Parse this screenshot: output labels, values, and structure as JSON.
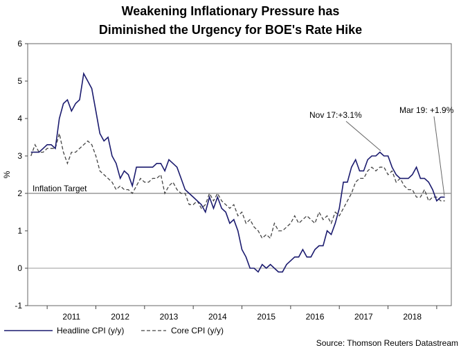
{
  "chart_data": {
    "type": "line",
    "title": [
      "Weakening Inflationary Pressure has",
      "Diminished the Urgency for BOE's Rate Hike"
    ],
    "ylabel": "%",
    "xlabel": "",
    "ylim": [
      -1,
      6
    ],
    "yticks": [
      -1,
      0,
      1,
      2,
      3,
      4,
      5,
      6
    ],
    "xlim": [
      2010.6,
      2019.3
    ],
    "xtick_labels": [
      "2011",
      "2012",
      "2013",
      "2014",
      "2015",
      "2016",
      "2017",
      "2018"
    ],
    "target": {
      "value": 2,
      "label": "Inflation Target"
    },
    "zero_line": 0,
    "series": [
      {
        "name": "Headline CPI (y/y)",
        "style": "solid",
        "color": "#1a1a6e",
        "start": [
          2010,
          8
        ],
        "values": [
          3.1,
          3.1,
          3.1,
          3.2,
          3.3,
          3.3,
          3.2,
          4.0,
          4.4,
          4.5,
          4.2,
          4.4,
          4.5,
          5.2,
          5.0,
          4.8,
          4.2,
          3.6,
          3.4,
          3.5,
          3.0,
          2.8,
          2.4,
          2.6,
          2.5,
          2.2,
          2.7,
          2.7,
          2.7,
          2.7,
          2.7,
          2.8,
          2.8,
          2.6,
          2.9,
          2.8,
          2.7,
          2.4,
          2.1,
          2.0,
          1.9,
          1.8,
          1.7,
          1.5,
          1.9,
          1.6,
          1.9,
          1.6,
          1.5,
          1.2,
          1.3,
          1.0,
          0.5,
          0.3,
          0.0,
          0.0,
          -0.1,
          0.1,
          0.0,
          0.1,
          0.0,
          -0.1,
          -0.1,
          0.1,
          0.2,
          0.3,
          0.3,
          0.5,
          0.3,
          0.3,
          0.5,
          0.6,
          0.6,
          1.0,
          0.9,
          1.2,
          1.6,
          2.3,
          2.3,
          2.7,
          2.9,
          2.6,
          2.6,
          2.9,
          3.0,
          3.0,
          3.1,
          3.0,
          3.0,
          2.7,
          2.5,
          2.4,
          2.4,
          2.4,
          2.5,
          2.7,
          2.4,
          2.4,
          2.3,
          2.1,
          1.8,
          1.9,
          1.9
        ]
      },
      {
        "name": "Core CPI (y/y)",
        "style": "dashed",
        "color": "#444444",
        "start": [
          2010,
          8
        ],
        "values": [
          3.0,
          3.3,
          3.1,
          3.1,
          3.2,
          3.2,
          3.2,
          3.6,
          3.1,
          2.8,
          3.1,
          3.1,
          3.2,
          3.3,
          3.4,
          3.3,
          3.0,
          2.6,
          2.5,
          2.4,
          2.3,
          2.1,
          2.2,
          2.1,
          2.1,
          2.0,
          2.2,
          2.4,
          2.3,
          2.3,
          2.4,
          2.4,
          2.5,
          2.0,
          2.2,
          2.3,
          2.1,
          2.0,
          2.0,
          1.7,
          1.7,
          1.8,
          1.6,
          1.7,
          2.0,
          1.8,
          2.0,
          1.8,
          1.7,
          1.6,
          1.7,
          1.4,
          1.5,
          1.2,
          1.3,
          1.1,
          1.0,
          0.8,
          0.9,
          0.8,
          1.2,
          1.0,
          1.0,
          1.1,
          1.2,
          1.4,
          1.2,
          1.3,
          1.4,
          1.3,
          1.2,
          1.5,
          1.3,
          1.4,
          1.2,
          1.5,
          1.4,
          1.6,
          1.8,
          2.0,
          2.3,
          2.4,
          2.4,
          2.6,
          2.7,
          2.6,
          2.7,
          2.7,
          2.5,
          2.6,
          2.3,
          2.4,
          2.2,
          2.1,
          2.1,
          1.9,
          1.9,
          2.1,
          1.8,
          1.9,
          1.9,
          1.8,
          1.8
        ]
      }
    ],
    "annotations": [
      {
        "text": "Nov 17:+3.1%",
        "x": 2017.85,
        "y": 3.1
      },
      {
        "text": "Mar 19: +1.9%",
        "x": 2019.2,
        "y": 1.9
      }
    ],
    "source": "Source: Thomson Reuters Datastream"
  }
}
